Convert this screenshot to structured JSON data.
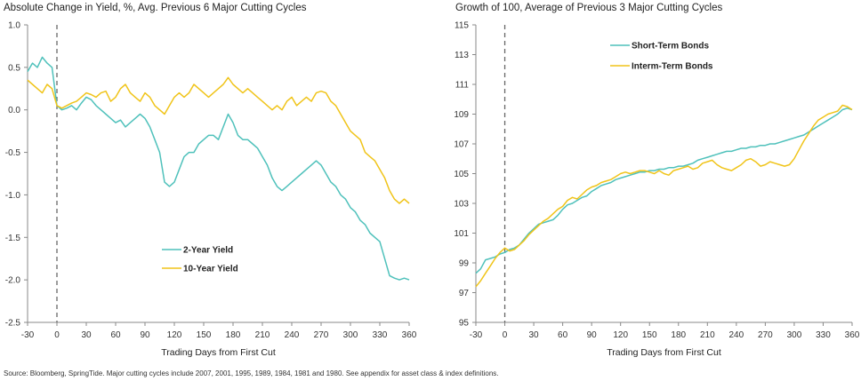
{
  "footnote": "Source: Bloomberg, SpringTide. Major cutting cycles include 2007, 2001, 1995, 1989, 1984, 1981 and 1980. See appendix for asset class & index definitions.",
  "colors": {
    "teal": "#4fc1bb",
    "gold": "#f0c419",
    "axis": "#888888",
    "zero_line": "#666666"
  },
  "chart_data": [
    {
      "type": "line",
      "title": "Absolute Change in Yield, %, Avg. Previous 6 Major Cutting Cycles",
      "xlabel": "Trading Days from First Cut",
      "ylabel": "",
      "xlim": [
        -30,
        360
      ],
      "ylim": [
        -2.5,
        1.0
      ],
      "xticks": [
        -30,
        0,
        30,
        60,
        90,
        120,
        150,
        180,
        210,
        240,
        270,
        300,
        330,
        360
      ],
      "yticks": [
        -2.5,
        -2.0,
        -1.5,
        -1.0,
        -0.5,
        0.0,
        0.5,
        1.0
      ],
      "ytick_labels": [
        "-2.5",
        "-2.0",
        "-1.5",
        "-1.0",
        "-0.5",
        "0.0",
        "0.5",
        "1.0"
      ],
      "legend_position": "bottom-left",
      "series": [
        {
          "name": "2-Year Yield",
          "color": "#4fc1bb",
          "x": [
            -30,
            -25,
            -20,
            -15,
            -10,
            -5,
            0,
            5,
            10,
            15,
            20,
            25,
            30,
            35,
            40,
            45,
            50,
            55,
            60,
            65,
            70,
            75,
            80,
            85,
            90,
            95,
            100,
            105,
            110,
            115,
            120,
            125,
            130,
            135,
            140,
            145,
            150,
            155,
            160,
            165,
            170,
            175,
            180,
            185,
            190,
            195,
            200,
            205,
            210,
            215,
            220,
            225,
            230,
            235,
            240,
            245,
            250,
            255,
            260,
            265,
            270,
            275,
            280,
            285,
            290,
            295,
            300,
            305,
            310,
            315,
            320,
            325,
            330,
            335,
            340,
            345,
            350,
            355,
            360
          ],
          "y": [
            0.45,
            0.55,
            0.5,
            0.62,
            0.55,
            0.5,
            0.05,
            0.0,
            0.02,
            0.05,
            0.0,
            0.08,
            0.15,
            0.12,
            0.05,
            0.0,
            -0.05,
            -0.1,
            -0.15,
            -0.12,
            -0.2,
            -0.15,
            -0.1,
            -0.05,
            -0.1,
            -0.2,
            -0.35,
            -0.5,
            -0.85,
            -0.9,
            -0.85,
            -0.7,
            -0.55,
            -0.5,
            -0.5,
            -0.4,
            -0.35,
            -0.3,
            -0.3,
            -0.35,
            -0.2,
            -0.05,
            -0.15,
            -0.3,
            -0.35,
            -0.35,
            -0.4,
            -0.45,
            -0.55,
            -0.65,
            -0.8,
            -0.9,
            -0.95,
            -0.9,
            -0.85,
            -0.8,
            -0.75,
            -0.7,
            -0.65,
            -0.6,
            -0.65,
            -0.75,
            -0.85,
            -0.9,
            -1.0,
            -1.05,
            -1.15,
            -1.2,
            -1.3,
            -1.35,
            -1.45,
            -1.5,
            -1.55,
            -1.75,
            -1.95,
            -1.98,
            -2.0,
            -1.98,
            -2.0
          ]
        },
        {
          "name": "10-Year Yield",
          "color": "#f0c419",
          "x": [
            -30,
            -25,
            -20,
            -15,
            -10,
            -5,
            0,
            5,
            10,
            15,
            20,
            25,
            30,
            35,
            40,
            45,
            50,
            55,
            60,
            65,
            70,
            75,
            80,
            85,
            90,
            95,
            100,
            105,
            110,
            115,
            120,
            125,
            130,
            135,
            140,
            145,
            150,
            155,
            160,
            165,
            170,
            175,
            180,
            185,
            190,
            195,
            200,
            205,
            210,
            215,
            220,
            225,
            230,
            235,
            240,
            245,
            250,
            255,
            260,
            265,
            270,
            275,
            280,
            285,
            290,
            295,
            300,
            305,
            310,
            315,
            320,
            325,
            330,
            335,
            340,
            345,
            350,
            355,
            360
          ],
          "y": [
            0.35,
            0.3,
            0.25,
            0.2,
            0.3,
            0.25,
            0.05,
            0.02,
            0.05,
            0.08,
            0.1,
            0.15,
            0.2,
            0.18,
            0.15,
            0.2,
            0.22,
            0.1,
            0.15,
            0.25,
            0.3,
            0.2,
            0.15,
            0.1,
            0.2,
            0.15,
            0.05,
            0.0,
            -0.05,
            0.05,
            0.15,
            0.2,
            0.15,
            0.2,
            0.3,
            0.25,
            0.2,
            0.15,
            0.2,
            0.25,
            0.3,
            0.38,
            0.3,
            0.25,
            0.2,
            0.25,
            0.2,
            0.15,
            0.1,
            0.05,
            0.0,
            0.05,
            0.0,
            0.1,
            0.15,
            0.05,
            0.1,
            0.15,
            0.1,
            0.2,
            0.22,
            0.2,
            0.1,
            0.05,
            -0.05,
            -0.15,
            -0.25,
            -0.3,
            -0.35,
            -0.5,
            -0.55,
            -0.6,
            -0.7,
            -0.8,
            -0.95,
            -1.05,
            -1.1,
            -1.05,
            -1.1
          ]
        }
      ]
    },
    {
      "type": "line",
      "title": "Growth of 100, Average of Previous 3 Major Cutting Cycles",
      "xlabel": "Trading Days from First Cut",
      "ylabel": "",
      "xlim": [
        -30,
        360
      ],
      "ylim": [
        95,
        115
      ],
      "xticks": [
        -30,
        0,
        30,
        60,
        90,
        120,
        150,
        180,
        210,
        240,
        270,
        300,
        330,
        360
      ],
      "yticks": [
        95,
        97,
        99,
        101,
        103,
        105,
        107,
        109,
        111,
        113,
        115
      ],
      "ytick_labels": [
        "95",
        "97",
        "99",
        "101",
        "103",
        "105",
        "107",
        "109",
        "111",
        "113",
        "115"
      ],
      "legend_position": "top-left",
      "series": [
        {
          "name": "Short-Term Bonds",
          "color": "#4fc1bb",
          "x": [
            -30,
            -25,
            -20,
            -15,
            -10,
            -5,
            0,
            5,
            10,
            15,
            20,
            25,
            30,
            35,
            40,
            45,
            50,
            55,
            60,
            65,
            70,
            75,
            80,
            85,
            90,
            95,
            100,
            105,
            110,
            115,
            120,
            125,
            130,
            135,
            140,
            145,
            150,
            155,
            160,
            165,
            170,
            175,
            180,
            185,
            190,
            195,
            200,
            205,
            210,
            215,
            220,
            225,
            230,
            235,
            240,
            245,
            250,
            255,
            260,
            265,
            270,
            275,
            280,
            285,
            290,
            295,
            300,
            305,
            310,
            315,
            320,
            325,
            330,
            335,
            340,
            345,
            350,
            355,
            360
          ],
          "y": [
            98.3,
            98.6,
            99.2,
            99.3,
            99.4,
            99.6,
            99.7,
            99.9,
            100.0,
            100.2,
            100.6,
            101.0,
            101.3,
            101.6,
            101.7,
            101.8,
            101.9,
            102.2,
            102.6,
            102.9,
            103.0,
            103.2,
            103.4,
            103.5,
            103.8,
            104.0,
            104.2,
            104.3,
            104.4,
            104.6,
            104.7,
            104.8,
            104.9,
            105.0,
            105.1,
            105.1,
            105.2,
            105.2,
            105.3,
            105.3,
            105.4,
            105.4,
            105.5,
            105.5,
            105.6,
            105.7,
            105.9,
            106.0,
            106.1,
            106.2,
            106.3,
            106.4,
            106.5,
            106.5,
            106.6,
            106.7,
            106.7,
            106.8,
            106.8,
            106.9,
            106.9,
            107.0,
            107.0,
            107.1,
            107.2,
            107.3,
            107.4,
            107.5,
            107.6,
            107.8,
            108.0,
            108.2,
            108.4,
            108.6,
            108.8,
            109.0,
            109.3,
            109.4,
            109.3
          ]
        },
        {
          "name": "Interm-Term Bonds",
          "color": "#f0c419",
          "x": [
            -30,
            -25,
            -20,
            -15,
            -10,
            -5,
            0,
            5,
            10,
            15,
            20,
            25,
            30,
            35,
            40,
            45,
            50,
            55,
            60,
            65,
            70,
            75,
            80,
            85,
            90,
            95,
            100,
            105,
            110,
            115,
            120,
            125,
            130,
            135,
            140,
            145,
            150,
            155,
            160,
            165,
            170,
            175,
            180,
            185,
            190,
            195,
            200,
            205,
            210,
            215,
            220,
            225,
            230,
            235,
            240,
            245,
            250,
            255,
            260,
            265,
            270,
            275,
            280,
            285,
            290,
            295,
            300,
            305,
            310,
            315,
            320,
            325,
            330,
            335,
            340,
            345,
            350,
            355,
            360
          ],
          "y": [
            97.4,
            97.8,
            98.3,
            98.8,
            99.3,
            99.7,
            100.0,
            99.8,
            99.9,
            100.2,
            100.5,
            100.9,
            101.2,
            101.5,
            101.8,
            102.0,
            102.3,
            102.6,
            102.8,
            103.2,
            103.4,
            103.3,
            103.6,
            103.9,
            104.1,
            104.2,
            104.4,
            104.5,
            104.6,
            104.8,
            105.0,
            105.1,
            105.0,
            105.1,
            105.2,
            105.2,
            105.1,
            105.0,
            105.2,
            105.0,
            104.9,
            105.2,
            105.3,
            105.4,
            105.5,
            105.3,
            105.4,
            105.7,
            105.8,
            105.9,
            105.6,
            105.4,
            105.3,
            105.2,
            105.4,
            105.6,
            105.9,
            106.0,
            105.8,
            105.5,
            105.6,
            105.8,
            105.7,
            105.6,
            105.5,
            105.6,
            106.0,
            106.6,
            107.2,
            107.7,
            108.2,
            108.6,
            108.8,
            109.0,
            109.1,
            109.2,
            109.6,
            109.5,
            109.3
          ]
        }
      ]
    }
  ]
}
